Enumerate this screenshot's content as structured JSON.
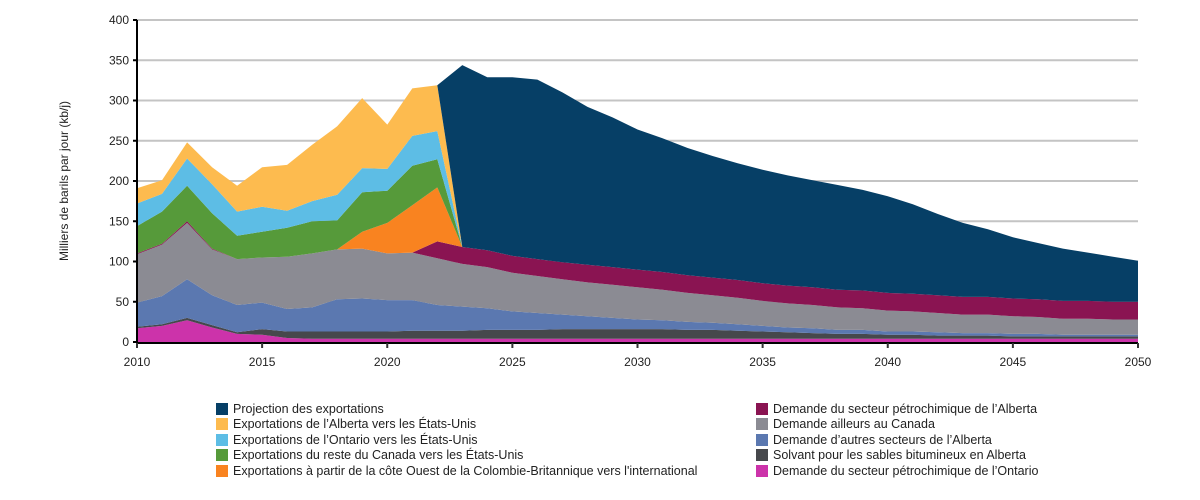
{
  "chart_data": {
    "type": "area",
    "stacked": true,
    "title": "",
    "xlabel": "",
    "ylabel": "Milliers de barils par jour (kb/j)",
    "xlim": [
      2010,
      2050
    ],
    "ylim": [
      0,
      400
    ],
    "yticks": [
      0,
      50,
      100,
      150,
      200,
      250,
      300,
      350,
      400
    ],
    "xticks": [
      2010,
      2015,
      2020,
      2025,
      2030,
      2035,
      2040,
      2045,
      2050
    ],
    "grid": "horizontal",
    "legend_position": "bottom",
    "x": [
      2010,
      2011,
      2012,
      2013,
      2014,
      2015,
      2016,
      2017,
      2018,
      2019,
      2020,
      2021,
      2022,
      2023,
      2024,
      2025,
      2026,
      2027,
      2028,
      2029,
      2030,
      2031,
      2032,
      2033,
      2034,
      2035,
      2036,
      2037,
      2038,
      2039,
      2040,
      2041,
      2042,
      2043,
      2044,
      2045,
      2046,
      2047,
      2048,
      2049,
      2050
    ],
    "series": [
      {
        "name": "Demande du secteur pétrochimique de l’Ontario",
        "color": "#cc33aa",
        "values": [
          17,
          20,
          27,
          18,
          10,
          9,
          5,
          4,
          4,
          4,
          4,
          4,
          4,
          4,
          4,
          4,
          4,
          4,
          4,
          4,
          4,
          4,
          4,
          4,
          4,
          4,
          4,
          4,
          4,
          4,
          4,
          4,
          4,
          4,
          4,
          4,
          4,
          4,
          4,
          4,
          4
        ]
      },
      {
        "name": "Solvant pour les sables bitumineux en Alberta",
        "color": "#46484c",
        "values": [
          2,
          2,
          3,
          3,
          2,
          7,
          8,
          9,
          9,
          9,
          9,
          10,
          10,
          10,
          11,
          11,
          11,
          12,
          12,
          12,
          12,
          12,
          11,
          11,
          10,
          9,
          8,
          7,
          6,
          6,
          5,
          5,
          4,
          4,
          4,
          3,
          3,
          3,
          3,
          3,
          3
        ]
      },
      {
        "name": "Demande d’autres secteurs de l’Alberta",
        "color": "#5b78b0",
        "values": [
          30,
          35,
          48,
          37,
          34,
          33,
          28,
          30,
          40,
          41,
          39,
          38,
          32,
          30,
          27,
          23,
          21,
          18,
          16,
          14,
          12,
          11,
          10,
          9,
          8,
          7,
          6,
          6,
          5,
          5,
          4,
          4,
          4,
          3,
          3,
          3,
          3,
          2,
          2,
          2,
          2
        ]
      },
      {
        "name": "Demande ailleurs au Canada",
        "color": "#8b8b93",
        "values": [
          60,
          64,
          70,
          57,
          57,
          56,
          65,
          67,
          62,
          62,
          58,
          59,
          58,
          53,
          51,
          48,
          46,
          44,
          42,
          41,
          40,
          38,
          36,
          34,
          33,
          31,
          30,
          29,
          28,
          27,
          26,
          25,
          24,
          23,
          23,
          22,
          21,
          20,
          20,
          19,
          19
        ]
      },
      {
        "name": "Demande du secteur pétrochimique de l’Alberta",
        "color": "#8a1452",
        "values": [
          1,
          1,
          2,
          1,
          0,
          0,
          0,
          0,
          0,
          0,
          0,
          0,
          21,
          21,
          21,
          21,
          21,
          21,
          22,
          22,
          22,
          22,
          22,
          22,
          22,
          22,
          22,
          22,
          22,
          22,
          22,
          22,
          22,
          22,
          22,
          22,
          22,
          22,
          22,
          22,
          22
        ]
      },
      {
        "name": "Exportations à partir de la côte Ouest de la Colombie-Britannique vers l'international",
        "color": "#f98320",
        "values": [
          0,
          0,
          0,
          0,
          0,
          0,
          0,
          0,
          0,
          21,
          38,
          59,
          67,
          0,
          0,
          0,
          0,
          0,
          0,
          0,
          0,
          0,
          0,
          0,
          0,
          0,
          0,
          0,
          0,
          0,
          0,
          0,
          0,
          0,
          0,
          0,
          0,
          0,
          0,
          0,
          0
        ]
      },
      {
        "name": "Exportations du reste du Canada vers les États-Unis",
        "color": "#569a3a",
        "values": [
          34,
          40,
          44,
          44,
          29,
          32,
          36,
          40,
          36,
          49,
          40,
          49,
          35,
          0,
          0,
          0,
          0,
          0,
          0,
          0,
          0,
          0,
          0,
          0,
          0,
          0,
          0,
          0,
          0,
          0,
          0,
          0,
          0,
          0,
          0,
          0,
          0,
          0,
          0,
          0,
          0
        ]
      },
      {
        "name": "Exportations de l'Ontario vers les États-Unis",
        "color": "#5dbde5",
        "values": [
          28,
          22,
          34,
          36,
          30,
          31,
          21,
          25,
          32,
          30,
          27,
          37,
          35,
          0,
          0,
          0,
          0,
          0,
          0,
          0,
          0,
          0,
          0,
          0,
          0,
          0,
          0,
          0,
          0,
          0,
          0,
          0,
          0,
          0,
          0,
          0,
          0,
          0,
          0,
          0,
          0
        ]
      },
      {
        "name": "Exportations de l'Alberta vers les États-Unis",
        "color": "#fdbb4f",
        "values": [
          19,
          17,
          20,
          21,
          32,
          49,
          57,
          70,
          85,
          87,
          55,
          59,
          57,
          0,
          0,
          0,
          0,
          0,
          0,
          0,
          0,
          0,
          0,
          0,
          0,
          0,
          0,
          0,
          0,
          0,
          0,
          0,
          0,
          0,
          0,
          0,
          0,
          0,
          0,
          0,
          0
        ]
      },
      {
        "name": "Projection des exportations",
        "color": "#063f66",
        "values": [
          0,
          0,
          0,
          0,
          0,
          0,
          0,
          0,
          0,
          0,
          0,
          0,
          0,
          226,
          215,
          222,
          223,
          211,
          196,
          186,
          174,
          166,
          158,
          151,
          145,
          141,
          137,
          133,
          130,
          125,
          120,
          111,
          101,
          92,
          84,
          76,
          70,
          65,
          60,
          56,
          51
        ]
      }
    ]
  },
  "legend": {
    "column_1": [
      {
        "label": "Projection des exportations",
        "color": "#063f66"
      },
      {
        "label": "Exportations de l’Alberta vers les États-Unis",
        "color": "#fdbb4f"
      },
      {
        "label": "Exportations de l’Ontario vers les États-Unis",
        "color": "#5dbde5"
      },
      {
        "label": "Exportations du reste du Canada vers les États-Unis",
        "color": "#569a3a"
      },
      {
        "label": "Exportations à partir de la côte Ouest de la Colombie-Britannique vers l'international",
        "color": "#f98320"
      }
    ],
    "column_2": [
      {
        "label": "Demande du secteur pétrochimique de l’Alberta",
        "color": "#8a1452"
      },
      {
        "label": "Demande ailleurs au Canada",
        "color": "#8b8b93"
      },
      {
        "label": "Demande d’autres secteurs de l’Alberta",
        "color": "#5b78b0"
      },
      {
        "label": "Solvant pour les sables bitumineux en Alberta",
        "color": "#46484c"
      },
      {
        "label": "Demande du secteur pétrochimique de l’Ontario",
        "color": "#cc33aa"
      }
    ]
  }
}
